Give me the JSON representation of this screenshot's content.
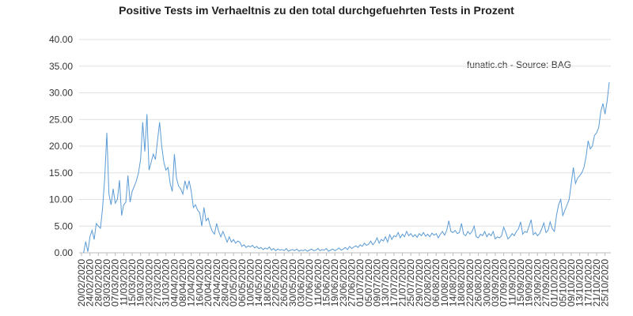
{
  "chart_data": {
    "type": "line",
    "title": "Positive Tests im Verhaeltnis zu den total durchgefuehrten Tests in Prozent",
    "annotation": "funatic.ch - Source: BAG",
    "color": "#5b9bd5",
    "grid": true,
    "ylim": [
      0,
      40
    ],
    "yticks": [
      {
        "value": 0,
        "label": "0.00"
      },
      {
        "value": 5,
        "label": "5.00"
      },
      {
        "value": 10,
        "label": "10.00"
      },
      {
        "value": 15,
        "label": "15.00"
      },
      {
        "value": 20,
        "label": "20.00"
      },
      {
        "value": 25,
        "label": "25.00"
      },
      {
        "value": 30,
        "label": "30.00"
      },
      {
        "value": 35,
        "label": "35.00"
      },
      {
        "value": 40,
        "label": "40.00"
      }
    ],
    "categories": [
      "20/02/2020",
      null,
      null,
      null,
      "24/02/2020",
      null,
      null,
      null,
      "28/02/2020",
      null,
      null,
      null,
      "03/03/2020",
      null,
      null,
      null,
      "07/03/2020",
      null,
      null,
      null,
      "11/03/2020",
      null,
      null,
      null,
      "15/03/2020",
      null,
      null,
      null,
      "19/03/2020",
      null,
      null,
      null,
      "23/03/2020",
      null,
      null,
      null,
      "27/03/2020",
      null,
      null,
      null,
      "31/03/2020",
      null,
      null,
      null,
      "04/04/2020",
      null,
      null,
      null,
      "08/04/2020",
      null,
      null,
      null,
      "12/04/2020",
      null,
      null,
      null,
      "16/04/2020",
      null,
      null,
      null,
      "20/04/2020",
      null,
      null,
      null,
      "24/04/2020",
      null,
      null,
      null,
      "28/04/2020",
      null,
      null,
      null,
      "02/05/2020",
      null,
      null,
      null,
      "06/05/2020",
      null,
      null,
      null,
      "10/05/2020",
      null,
      null,
      null,
      "14/05/2020",
      null,
      null,
      null,
      "18/05/2020",
      null,
      null,
      null,
      "22/05/2020",
      null,
      null,
      null,
      "26/05/2020",
      null,
      null,
      null,
      "30/05/2020",
      null,
      null,
      null,
      "03/06/2020",
      null,
      null,
      null,
      "07/06/2020",
      null,
      null,
      null,
      "11/06/2020",
      null,
      null,
      null,
      "15/06/2020",
      null,
      null,
      null,
      "19/06/2020",
      null,
      null,
      null,
      "23/06/2020",
      null,
      null,
      null,
      "27/06/2020",
      null,
      null,
      null,
      "01/07/2020",
      null,
      null,
      null,
      "05/07/2020",
      null,
      null,
      null,
      "09/07/2020",
      null,
      null,
      null,
      "13/07/2020",
      null,
      null,
      null,
      "17/07/2020",
      null,
      null,
      null,
      "21/07/2020",
      null,
      null,
      null,
      "25/07/2020",
      null,
      null,
      null,
      "29/07/2020",
      null,
      null,
      null,
      "02/08/2020",
      null,
      null,
      null,
      "06/08/2020",
      null,
      null,
      null,
      "10/08/2020",
      null,
      null,
      null,
      "14/08/2020",
      null,
      null,
      null,
      "18/08/2020",
      null,
      null,
      null,
      "22/08/2020",
      null,
      null,
      null,
      "26/08/2020",
      null,
      null,
      null,
      "30/08/2020",
      null,
      null,
      null,
      "03/09/2020",
      null,
      null,
      null,
      "07/09/2020",
      null,
      null,
      null,
      "11/09/2020",
      null,
      null,
      null,
      "15/09/2020",
      null,
      null,
      null,
      "19/09/2020",
      null,
      null,
      null,
      "23/09/2020",
      null,
      null,
      null,
      "27/09/2020",
      null,
      null,
      null,
      "01/10/2020",
      null,
      null,
      null,
      "05/10/2020",
      null,
      null,
      null,
      "09/10/2020",
      null,
      null,
      null,
      "13/10/2020",
      null,
      null,
      null,
      "17/10/2020",
      null,
      null,
      null,
      "21/10/2020",
      null,
      null,
      null,
      "25/10/2020",
      null,
      null
    ],
    "values": [
      null,
      0,
      2.1,
      0.2,
      3.0,
      4.2,
      2.5,
      5.5,
      5.0,
      4.6,
      8.5,
      14.0,
      22.5,
      11.0,
      9.0,
      12.0,
      9.3,
      10.0,
      13.6,
      7.0,
      9.0,
      9.5,
      14.5,
      9.5,
      11.5,
      12.5,
      13.5,
      15.0,
      17.5,
      24.5,
      19.0,
      26.0,
      15.5,
      17.0,
      18.5,
      17.5,
      21.0,
      24.5,
      20.0,
      17.0,
      15.5,
      16.0,
      13.0,
      11.5,
      18.5,
      14.0,
      12.5,
      12.0,
      11.0,
      13.5,
      12.0,
      13.5,
      11.5,
      8.5,
      9.0,
      8.0,
      7.5,
      5.0,
      8.5,
      6.0,
      6.5,
      5.0,
      4.0,
      3.5,
      5.5,
      4.0,
      3.0,
      4.0,
      3.0,
      2.0,
      3.0,
      2.0,
      2.5,
      1.8,
      2.2,
      2.0,
      1.2,
      1.5,
      1.0,
      1.3,
      1.1,
      1.4,
      0.9,
      1.2,
      0.8,
      1.0,
      0.6,
      0.9,
      0.7,
      1.1,
      0.5,
      0.8,
      0.4,
      0.7,
      0.5,
      0.6,
      0.4,
      0.8,
      0.3,
      0.5,
      0.6,
      0.4,
      0.7,
      0.3,
      0.5,
      0.4,
      0.6,
      0.3,
      0.5,
      0.7,
      0.4,
      0.5,
      0.8,
      0.4,
      0.6,
      0.5,
      0.8,
      0.3,
      0.5,
      0.7,
      0.4,
      0.6,
      0.9,
      0.5,
      0.7,
      1.0,
      0.6,
      1.2,
      0.8,
      1.1,
      1.3,
      1.0,
      1.5,
      1.2,
      1.8,
      1.4,
      1.6,
      2.2,
      1.5,
      2.0,
      2.8,
      1.8,
      2.5,
      2.2,
      3.0,
      2.0,
      3.4,
      2.5,
      3.2,
      3.0,
      3.8,
      2.8,
      3.5,
      3.0,
      4.0,
      3.2,
      3.6,
      3.0,
      3.4,
      2.9,
      3.6,
      3.2,
      3.8,
      3.1,
      3.5,
      3.0,
      3.7,
      3.3,
      3.6,
      2.8,
      3.5,
      4.0,
      3.3,
      4.2,
      6.0,
      4.0,
      3.8,
      4.2,
      3.6,
      3.8,
      5.5,
      3.5,
      3.2,
      4.0,
      3.5,
      4.0,
      5.0,
      3.0,
      2.8,
      3.5,
      3.2,
      4.0,
      3.0,
      3.6,
      3.2,
      4.0,
      2.6,
      3.0,
      2.8,
      3.2,
      4.8,
      3.8,
      2.6,
      3.0,
      3.6,
      3.2,
      4.0,
      4.5,
      5.8,
      3.5,
      4.0,
      3.8,
      5.0,
      6.2,
      3.4,
      3.8,
      3.2,
      3.6,
      4.5,
      5.6,
      3.8,
      4.2,
      5.8,
      4.5,
      4.0,
      7.0,
      9.0,
      10.0,
      7.0,
      8.0,
      9.0,
      10.0,
      13.0,
      16.0,
      13.0,
      14.0,
      14.5,
      15.0,
      16.0,
      18.0,
      21.0,
      19.5,
      20.0,
      22.0,
      22.5,
      23.5,
      26.5,
      28.0,
      26.0,
      28.5,
      32.0
    ]
  }
}
